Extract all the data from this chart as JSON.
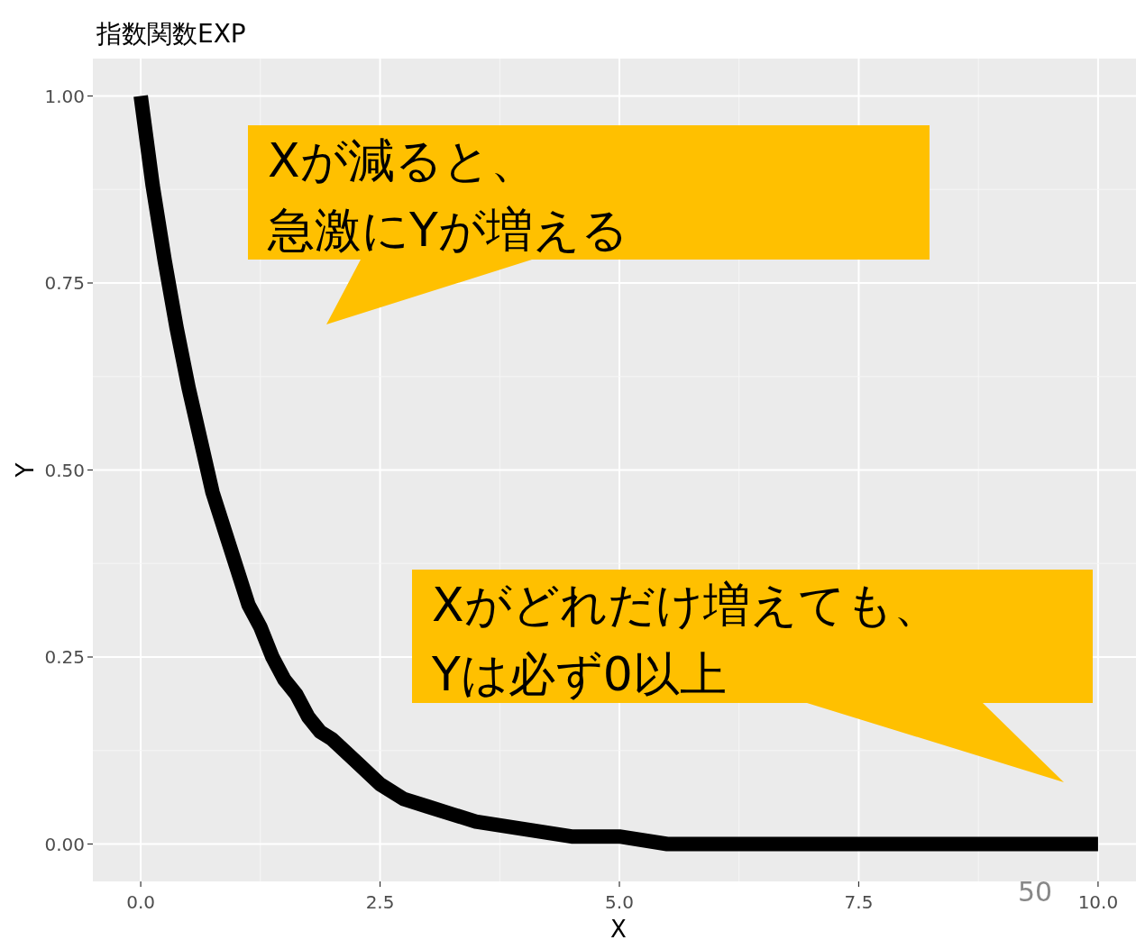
{
  "chart_data": {
    "type": "line",
    "title": "指数関数EXP",
    "xlabel": "X",
    "ylabel": "Y",
    "x": [
      0,
      0.125,
      0.25,
      0.375,
      0.5,
      0.625,
      0.75,
      0.875,
      1,
      1.125,
      1.25,
      1.375,
      1.5,
      1.625,
      1.75,
      1.875,
      2,
      2.25,
      2.5,
      2.75,
      3,
      3.25,
      3.5,
      4,
      4.5,
      5,
      5.5,
      6,
      7,
      8,
      9,
      10
    ],
    "series": [
      {
        "color": "#000000",
        "values": [
          1.0,
          0.88,
          0.78,
          0.69,
          0.61,
          0.54,
          0.47,
          0.42,
          0.37,
          0.32,
          0.29,
          0.25,
          0.22,
          0.2,
          0.17,
          0.15,
          0.14,
          0.11,
          0.08,
          0.06,
          0.05,
          0.04,
          0.03,
          0.02,
          0.01,
          0.01,
          0.0,
          0.0,
          0.0,
          0.0,
          0.0,
          0.0
        ]
      }
    ],
    "xlim": [
      -0.5,
      10.5
    ],
    "ylim": [
      -0.05,
      1.05
    ],
    "xticks": [
      {
        "value": 0,
        "label": "0.0"
      },
      {
        "value": 2.5,
        "label": "2.5"
      },
      {
        "value": 5,
        "label": "5.0"
      },
      {
        "value": 7.5,
        "label": "7.5"
      },
      {
        "value": 10,
        "label": "10.0"
      }
    ],
    "yticks": [
      {
        "value": 0,
        "label": "0.00"
      },
      {
        "value": 0.25,
        "label": "0.25"
      },
      {
        "value": 0.5,
        "label": "0.50"
      },
      {
        "value": 0.75,
        "label": "0.75"
      },
      {
        "value": 1,
        "label": "1.00"
      }
    ],
    "grid": true,
    "annotations": [
      "Xが減ると、",
      "急激にYが増える",
      "Xがどれだけ増えても、",
      "Yは必ず0以上",
      "50"
    ]
  }
}
